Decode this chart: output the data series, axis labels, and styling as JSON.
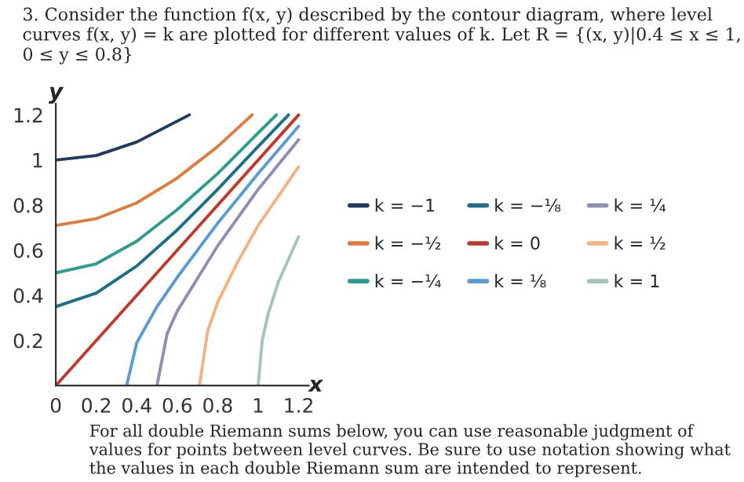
{
  "chart_data": {
    "type": "line",
    "title": "3. Consider the function f(x, y) described by the contour diagram, where level curves f(x, y) = k are plotted for different values of k. Let R = {(x, y)|0.4 ≤ x ≤ 1, 0 ≤ y ≤ 0.8}",
    "xlabel": "x",
    "ylabel": "y",
    "annotations": [
      "For all double Riemann sums below, you can use reasonable judgment of values for points between level curves. Be sure to use notation showing what the values in each double Riemann sum are intended to represent."
    ],
    "xlim": [
      0,
      1.25
    ],
    "ylim": [
      0,
      1.25
    ],
    "xticks": [
      {
        "value": 0,
        "label": "0"
      },
      0.2,
      0.4,
      0.6,
      0.8,
      1,
      1.2
    ],
    "yticks": [
      0.2,
      0.4,
      0.6,
      0.8,
      1,
      1.2
    ],
    "grid": false,
    "legend": "right",
    "marker": "none",
    "line_style": "solid",
    "series": [
      {
        "name": "k = −1",
        "color": "#1f3a5f",
        "x": [
          0,
          0.2,
          0.4,
          0.66
        ],
        "values": [
          1,
          1.02,
          1.08,
          1.2
        ]
      },
      {
        "name": "k = −½",
        "color": "#e07b39",
        "x": [
          0,
          0.2,
          0.4,
          0.6,
          0.8,
          0.97
        ],
        "values": [
          0.71,
          0.74,
          0.81,
          0.92,
          1.06,
          1.2
        ]
      },
      {
        "name": "k = −¼",
        "color": "#2a9d8f",
        "x": [
          0,
          0.2,
          0.4,
          0.6,
          0.8,
          1.0,
          1.09
        ],
        "values": [
          0.5,
          0.54,
          0.64,
          0.78,
          0.94,
          1.12,
          1.2
        ]
      },
      {
        "name": "k = −⅛",
        "color": "#1b6f8a",
        "x": [
          0,
          0.2,
          0.4,
          0.6,
          0.8,
          1.0,
          1.15
        ],
        "values": [
          0.35,
          0.41,
          0.53,
          0.69,
          0.87,
          1.06,
          1.2
        ]
      },
      {
        "name": "k = 0",
        "color": "#c0392b",
        "x": [
          0,
          1.2
        ],
        "values": [
          0,
          1.2
        ]
      },
      {
        "name": "k = ⅛",
        "color": "#5b9bd5",
        "x": [
          0.35,
          0.4,
          0.5,
          0.6,
          0.8,
          1.0,
          1.2
        ],
        "values": [
          0,
          0.19,
          0.35,
          0.48,
          0.72,
          0.94,
          1.15
        ]
      },
      {
        "name": "k = ¼",
        "color": "#8e8fb5",
        "x": [
          0.5,
          0.55,
          0.6,
          0.8,
          1.0,
          1.2
        ],
        "values": [
          0,
          0.23,
          0.33,
          0.62,
          0.87,
          1.09
        ]
      },
      {
        "name": "k = ½",
        "color": "#f4b183",
        "x": [
          0.71,
          0.75,
          0.8,
          0.9,
          1.0,
          1.1,
          1.2
        ],
        "values": [
          0,
          0.24,
          0.37,
          0.55,
          0.71,
          0.84,
          0.97
        ]
      },
      {
        "name": "k = 1",
        "color": "#a3c4bc",
        "x": [
          1.0,
          1.02,
          1.05,
          1.1,
          1.15,
          1.2
        ],
        "values": [
          0,
          0.2,
          0.32,
          0.46,
          0.56,
          0.66
        ]
      }
    ]
  }
}
